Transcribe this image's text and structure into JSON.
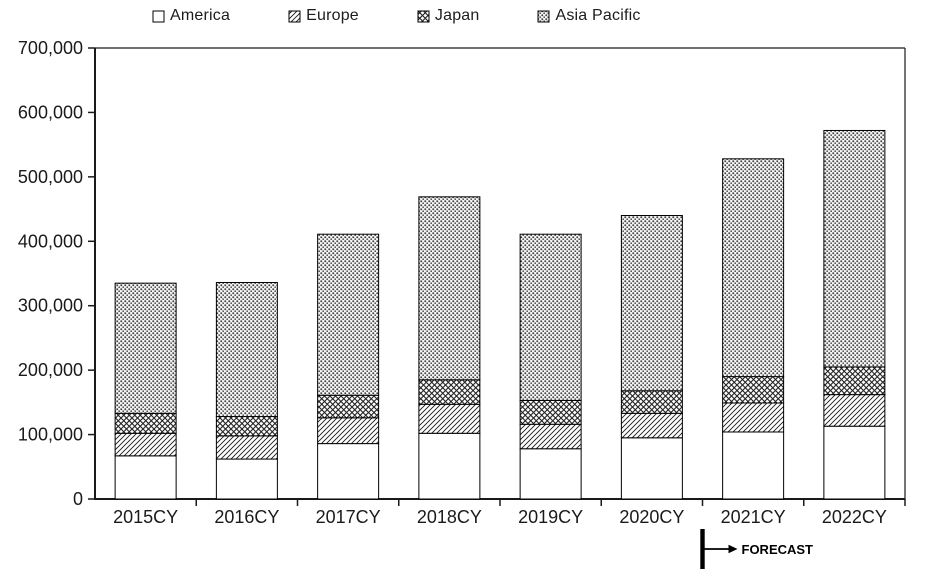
{
  "chart_data": {
    "type": "bar",
    "stacked": true,
    "title": "",
    "xlabel": "",
    "ylabel": "",
    "categories": [
      "2015CY",
      "2016CY",
      "2017CY",
      "2018CY",
      "2019CY",
      "2020CY",
      "2021CY",
      "2022CY"
    ],
    "series": [
      {
        "name": "America",
        "pattern": "plain-white",
        "values": [
          67000,
          62000,
          86000,
          102000,
          78000,
          95000,
          104000,
          113000
        ]
      },
      {
        "name": "Europe",
        "pattern": "diagonal-hatch",
        "values": [
          35000,
          36000,
          40000,
          45000,
          38000,
          38000,
          45000,
          49000
        ]
      },
      {
        "name": "Japan",
        "pattern": "diamond-crosshatch",
        "values": [
          31000,
          30000,
          35000,
          38000,
          37000,
          35000,
          41000,
          43000
        ]
      },
      {
        "name": "Asia Pacific",
        "pattern": "dot-grid",
        "values": [
          202000,
          208000,
          250000,
          284000,
          258000,
          272000,
          338000,
          367000
        ]
      }
    ],
    "totals": [
      335000,
      336000,
      411000,
      469000,
      411000,
      440000,
      528000,
      572000
    ],
    "ylim": [
      0,
      700000
    ],
    "y_tick_interval": 100000,
    "y_tick_labels": [
      "0",
      "100,000",
      "200,000",
      "300,000",
      "400,000",
      "500,000",
      "600,000",
      "700,000"
    ],
    "grid": false,
    "legend_position": "top",
    "annotation": {
      "label": "FORECAST",
      "forecast_starts_at_category": "2021CY"
    }
  },
  "colors": {
    "ink": "#1a1a1a",
    "axis": "#1a1a1a",
    "pattern_dot": "#3f3f3f",
    "background": "#ffffff"
  }
}
